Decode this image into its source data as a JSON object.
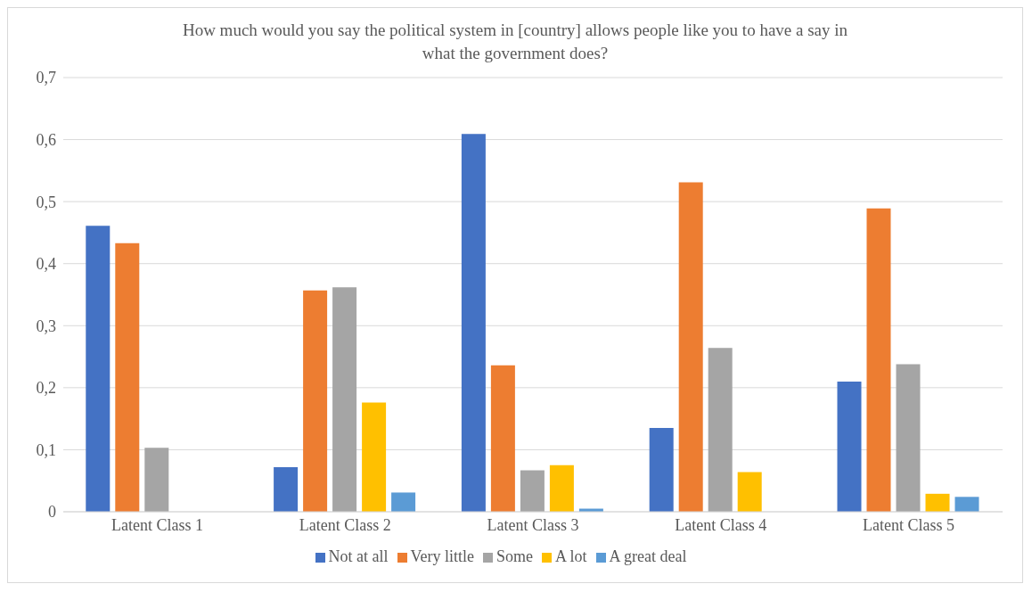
{
  "chart_data": {
    "type": "bar",
    "title": "How much would you say the political system in [country] allows people like you to have a say in what the government does?",
    "categories": [
      "Latent Class 1",
      "Latent Class 2",
      "Latent Class 3",
      "Latent Class 4",
      "Latent Class 5"
    ],
    "series": [
      {
        "name": "Not at all",
        "color": "#4472c4",
        "values": [
          0.461,
          0.072,
          0.609,
          0.135,
          0.21
        ]
      },
      {
        "name": "Very little",
        "color": "#ed7d31",
        "values": [
          0.433,
          0.357,
          0.236,
          0.531,
          0.489
        ]
      },
      {
        "name": "Some",
        "color": "#a5a5a5",
        "values": [
          0.103,
          0.362,
          0.067,
          0.264,
          0.238
        ]
      },
      {
        "name": "A lot",
        "color": "#ffc000",
        "values": [
          0,
          0.176,
          0.075,
          0.064,
          0.029
        ]
      },
      {
        "name": "A great deal",
        "color": "#5b9bd5",
        "values": [
          0,
          0.031,
          0.005,
          0,
          0.024
        ]
      }
    ],
    "ylim": [
      0,
      0.7
    ],
    "yticks": [
      0,
      {
        "value": 0.1,
        "label": "0,1"
      },
      {
        "value": 0.2,
        "label": "0,2"
      },
      {
        "value": 0.3,
        "label": "0,3"
      },
      {
        "value": 0.4,
        "label": "0,4"
      },
      {
        "value": 0.5,
        "label": "0,5"
      },
      {
        "value": 0.6,
        "label": "0,6"
      },
      {
        "value": 0.7,
        "label": "0,7"
      }
    ],
    "grid": "y",
    "legend": "bottom"
  }
}
